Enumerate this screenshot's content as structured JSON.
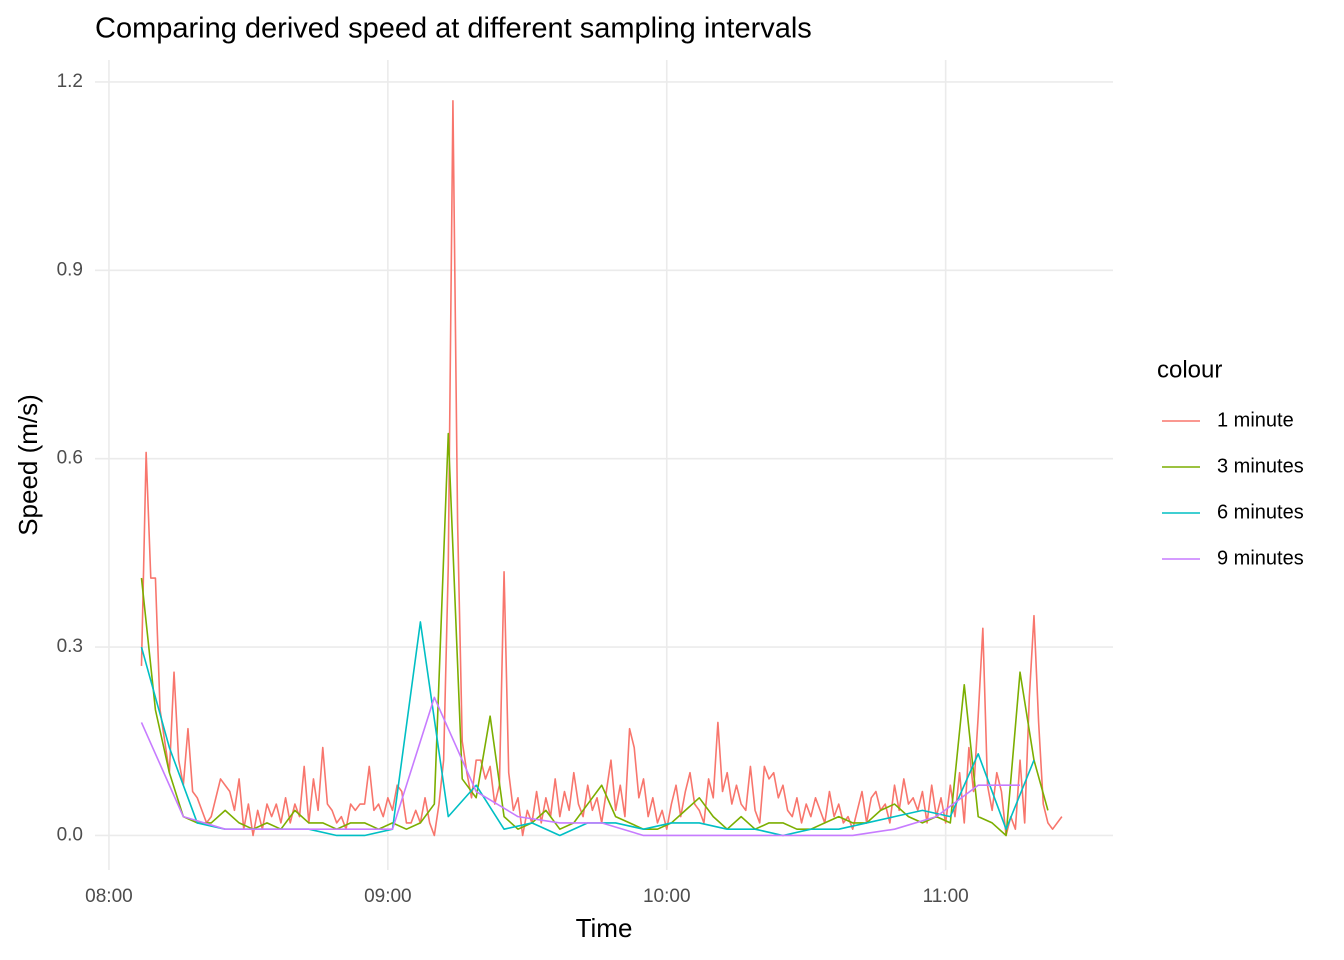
{
  "chart_data": {
    "type": "line",
    "title": "Comparing derived speed at different sampling intervals",
    "x_label": "Time",
    "y_label": "Speed (m/s)",
    "legend_title": "colour",
    "legend": "right",
    "grid": true,
    "xlim": [
      "07:57",
      "11:36"
    ],
    "xticks": [
      "08:00",
      "09:00",
      "10:00",
      "11:00"
    ],
    "ylim": [
      -0.055,
      1.235
    ],
    "yticks": [
      {
        "value": 0,
        "label": "0.0"
      },
      0.3,
      0.6,
      0.9,
      1.2
    ],
    "series": [
      {
        "name": "1 minute",
        "color": "#F8766D",
        "x": [
          "08:07",
          "08:08",
          "08:09",
          "08:10",
          "08:11",
          "08:12",
          "08:13",
          "08:14",
          "08:15",
          "08:16",
          "08:17",
          "08:18",
          "08:19",
          "08:20",
          "08:21",
          "08:22",
          "08:23",
          "08:24",
          "08:25",
          "08:26",
          "08:27",
          "08:28",
          "08:29",
          "08:30",
          "08:31",
          "08:32",
          "08:33",
          "08:34",
          "08:35",
          "08:36",
          "08:37",
          "08:38",
          "08:39",
          "08:40",
          "08:41",
          "08:42",
          "08:43",
          "08:44",
          "08:45",
          "08:46",
          "08:47",
          "08:48",
          "08:49",
          "08:50",
          "08:51",
          "08:52",
          "08:53",
          "08:54",
          "08:55",
          "08:56",
          "08:57",
          "08:58",
          "08:59",
          "09:00",
          "09:01",
          "09:02",
          "09:03",
          "09:04",
          "09:05",
          "09:06",
          "09:07",
          "09:08",
          "09:09",
          "09:10",
          "09:11",
          "09:12",
          "09:13",
          "09:14",
          "09:15",
          "09:16",
          "09:17",
          "09:18",
          "09:19",
          "09:20",
          "09:21",
          "09:22",
          "09:23",
          "09:24",
          "09:25",
          "09:26",
          "09:27",
          "09:28",
          "09:29",
          "09:30",
          "09:31",
          "09:32",
          "09:33",
          "09:34",
          "09:35",
          "09:36",
          "09:37",
          "09:38",
          "09:39",
          "09:40",
          "09:41",
          "09:42",
          "09:43",
          "09:44",
          "09:45",
          "09:46",
          "09:47",
          "09:48",
          "09:49",
          "09:50",
          "09:51",
          "09:52",
          "09:53",
          "09:54",
          "09:55",
          "09:56",
          "09:57",
          "09:58",
          "09:59",
          "10:00",
          "10:01",
          "10:02",
          "10:03",
          "10:04",
          "10:05",
          "10:06",
          "10:07",
          "10:08",
          "10:09",
          "10:10",
          "10:11",
          "10:12",
          "10:13",
          "10:14",
          "10:15",
          "10:16",
          "10:17",
          "10:18",
          "10:19",
          "10:20",
          "10:21",
          "10:22",
          "10:23",
          "10:24",
          "10:25",
          "10:26",
          "10:27",
          "10:28",
          "10:29",
          "10:30",
          "10:31",
          "10:32",
          "10:33",
          "10:34",
          "10:35",
          "10:36",
          "10:37",
          "10:38",
          "10:39",
          "10:40",
          "10:41",
          "10:42",
          "10:43",
          "10:44",
          "10:45",
          "10:46",
          "10:47",
          "10:48",
          "10:49",
          "10:50",
          "10:51",
          "10:52",
          "10:53",
          "10:54",
          "10:55",
          "10:56",
          "10:57",
          "10:58",
          "10:59",
          "11:00",
          "11:01",
          "11:02",
          "11:03",
          "11:04",
          "11:05",
          "11:06",
          "11:07",
          "11:08",
          "11:09",
          "11:10",
          "11:11",
          "11:12",
          "11:13",
          "11:14",
          "11:15",
          "11:16",
          "11:17",
          "11:18",
          "11:19",
          "11:20",
          "11:21",
          "11:22",
          "11:23",
          "11:24",
          "11:25"
        ],
        "values": [
          0.27,
          0.61,
          0.41,
          0.41,
          0.2,
          0.15,
          0.1,
          0.26,
          0.12,
          0.08,
          0.17,
          0.07,
          0.06,
          0.04,
          0.02,
          0.03,
          0.06,
          0.09,
          0.08,
          0.07,
          0.04,
          0.09,
          0.01,
          0.05,
          0.0,
          0.04,
          0.01,
          0.05,
          0.03,
          0.05,
          0.02,
          0.06,
          0.02,
          0.05,
          0.03,
          0.11,
          0.02,
          0.09,
          0.04,
          0.14,
          0.05,
          0.04,
          0.02,
          0.03,
          0.01,
          0.05,
          0.04,
          0.05,
          0.05,
          0.11,
          0.04,
          0.05,
          0.03,
          0.06,
          0.04,
          0.08,
          0.07,
          0.02,
          0.02,
          0.04,
          0.02,
          0.06,
          0.02,
          0.0,
          0.05,
          0.12,
          0.43,
          1.17,
          0.5,
          0.15,
          0.1,
          0.06,
          0.12,
          0.12,
          0.09,
          0.11,
          0.05,
          0.08,
          0.42,
          0.1,
          0.04,
          0.06,
          0.0,
          0.04,
          0.02,
          0.07,
          0.02,
          0.06,
          0.03,
          0.09,
          0.03,
          0.07,
          0.04,
          0.1,
          0.05,
          0.03,
          0.08,
          0.04,
          0.06,
          0.02,
          0.07,
          0.12,
          0.04,
          0.08,
          0.03,
          0.17,
          0.14,
          0.06,
          0.09,
          0.03,
          0.06,
          0.02,
          0.04,
          0.01,
          0.05,
          0.08,
          0.03,
          0.07,
          0.1,
          0.05,
          0.04,
          0.02,
          0.09,
          0.06,
          0.18,
          0.07,
          0.1,
          0.05,
          0.08,
          0.05,
          0.04,
          0.11,
          0.04,
          0.02,
          0.11,
          0.09,
          0.1,
          0.06,
          0.08,
          0.04,
          0.03,
          0.06,
          0.02,
          0.05,
          0.03,
          0.06,
          0.04,
          0.02,
          0.07,
          0.03,
          0.05,
          0.02,
          0.03,
          0.01,
          0.04,
          0.07,
          0.02,
          0.06,
          0.07,
          0.04,
          0.05,
          0.02,
          0.08,
          0.04,
          0.09,
          0.05,
          0.06,
          0.04,
          0.07,
          0.02,
          0.08,
          0.03,
          0.06,
          0.02,
          0.08,
          0.03,
          0.1,
          0.02,
          0.14,
          0.07,
          0.19,
          0.33,
          0.08,
          0.04,
          0.1,
          0.07,
          0.0,
          0.03,
          0.01,
          0.12,
          0.02,
          0.22,
          0.35,
          0.18,
          0.05,
          0.02,
          0.01,
          0.02,
          0.03
        ]
      },
      {
        "name": "3 minutes",
        "color": "#7CAE00",
        "x": [
          "08:07",
          "08:10",
          "08:13",
          "08:16",
          "08:19",
          "08:22",
          "08:25",
          "08:28",
          "08:31",
          "08:34",
          "08:37",
          "08:40",
          "08:43",
          "08:46",
          "08:49",
          "08:52",
          "08:55",
          "08:58",
          "09:01",
          "09:04",
          "09:07",
          "09:10",
          "09:13",
          "09:16",
          "09:19",
          "09:22",
          "09:25",
          "09:28",
          "09:31",
          "09:34",
          "09:37",
          "09:40",
          "09:43",
          "09:46",
          "09:49",
          "09:52",
          "09:55",
          "09:58",
          "10:01",
          "10:04",
          "10:07",
          "10:10",
          "10:13",
          "10:16",
          "10:19",
          "10:22",
          "10:25",
          "10:28",
          "10:31",
          "10:34",
          "10:37",
          "10:40",
          "10:43",
          "10:46",
          "10:49",
          "10:52",
          "10:55",
          "10:58",
          "11:01",
          "11:04",
          "11:07",
          "11:10",
          "11:13",
          "11:16",
          "11:19",
          "11:22"
        ],
        "values": [
          0.41,
          0.2,
          0.1,
          0.03,
          0.02,
          0.02,
          0.04,
          0.02,
          0.01,
          0.02,
          0.01,
          0.04,
          0.02,
          0.02,
          0.01,
          0.02,
          0.02,
          0.01,
          0.02,
          0.01,
          0.02,
          0.05,
          0.64,
          0.09,
          0.06,
          0.19,
          0.03,
          0.01,
          0.02,
          0.04,
          0.01,
          0.02,
          0.05,
          0.08,
          0.03,
          0.02,
          0.01,
          0.01,
          0.02,
          0.04,
          0.06,
          0.03,
          0.01,
          0.03,
          0.01,
          0.02,
          0.02,
          0.01,
          0.01,
          0.02,
          0.03,
          0.02,
          0.02,
          0.04,
          0.05,
          0.03,
          0.02,
          0.03,
          0.02,
          0.24,
          0.03,
          0.02,
          0.0,
          0.26,
          0.12,
          0.04
        ]
      },
      {
        "name": "6 minutes",
        "color": "#00BFC4",
        "x": [
          "08:07",
          "08:13",
          "08:19",
          "08:25",
          "08:31",
          "08:37",
          "08:43",
          "08:49",
          "08:55",
          "09:01",
          "09:07",
          "09:13",
          "09:19",
          "09:25",
          "09:31",
          "09:37",
          "09:43",
          "09:49",
          "09:55",
          "10:01",
          "10:07",
          "10:13",
          "10:19",
          "10:25",
          "10:31",
          "10:37",
          "10:43",
          "10:49",
          "10:55",
          "11:01",
          "11:07",
          "11:13",
          "11:19"
        ],
        "values": [
          0.3,
          0.14,
          0.02,
          0.01,
          0.01,
          0.01,
          0.01,
          0.0,
          0.0,
          0.01,
          0.34,
          0.03,
          0.08,
          0.01,
          0.02,
          0.0,
          0.02,
          0.02,
          0.01,
          0.02,
          0.02,
          0.01,
          0.01,
          0.0,
          0.01,
          0.01,
          0.02,
          0.03,
          0.04,
          0.03,
          0.13,
          0.01,
          0.12
        ]
      },
      {
        "name": "9 minutes",
        "color": "#C77CFF",
        "x": [
          "08:07",
          "08:16",
          "08:25",
          "08:34",
          "08:43",
          "08:52",
          "09:01",
          "09:10",
          "09:19",
          "09:28",
          "09:37",
          "09:46",
          "09:55",
          "10:04",
          "10:13",
          "10:22",
          "10:31",
          "10:40",
          "10:49",
          "10:58",
          "11:07",
          "11:16"
        ],
        "values": [
          0.18,
          0.03,
          0.01,
          0.01,
          0.01,
          0.01,
          0.01,
          0.22,
          0.07,
          0.03,
          0.02,
          0.02,
          0.0,
          0.0,
          0.0,
          0.0,
          0.0,
          0.0,
          0.01,
          0.03,
          0.08,
          0.08
        ]
      }
    ]
  }
}
